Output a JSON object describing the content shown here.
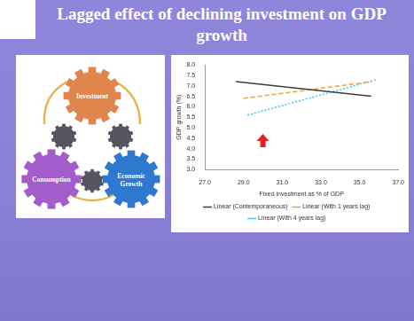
{
  "slide": {
    "title": "Lagged effect of declining investment on GDP growth"
  },
  "diagram": {
    "nodes": [
      {
        "label": "Investment"
      },
      {
        "label": "Consumption"
      },
      {
        "label": "Economic Growth"
      }
    ]
  },
  "chart_data": {
    "type": "line",
    "x_label": "Fixed investment as % of GDP",
    "y_label": "GDP growth (%)",
    "series": [
      {
        "name": "Linear (Contemporaneous)",
        "color": "#3c3c3c",
        "line_style": "solid",
        "x": [
          28.6,
          35.6
        ],
        "values": [
          7.2,
          6.5
        ]
      },
      {
        "name": "Linear (With 1 years lag)",
        "color": "#f0a030",
        "line_style": "dashed",
        "x": [
          29.0,
          35.6
        ],
        "values": [
          6.4,
          7.2
        ]
      },
      {
        "name": "Linear (With 4 years lag)",
        "color": "#3cc8f0",
        "line_style": "dotted",
        "x": [
          29.2,
          35.9
        ],
        "values": [
          5.6,
          7.3
        ]
      }
    ],
    "xlim": [
      27,
      37
    ],
    "xticks": [
      {
        "value": 27,
        "label": "27.0"
      },
      {
        "value": 29,
        "label": "29.0"
      },
      {
        "value": 31,
        "label": "31.0"
      },
      {
        "value": 33,
        "label": "33.0"
      },
      {
        "value": 35,
        "label": "35.0"
      },
      {
        "value": 37,
        "label": "37.0"
      }
    ],
    "ylim": [
      3,
      8
    ],
    "yticks": [
      {
        "value": 3,
        "label": "3.0"
      },
      3.5,
      {
        "value": 4,
        "label": "4.0"
      },
      4.5,
      {
        "value": 5,
        "label": "5.0"
      },
      5.5,
      {
        "value": 6,
        "label": "6.0"
      },
      6.5,
      {
        "value": 7,
        "label": "7.0"
      },
      7.5,
      {
        "value": 8,
        "label": "8.0"
      }
    ],
    "grid": false,
    "legend": "bottom"
  }
}
